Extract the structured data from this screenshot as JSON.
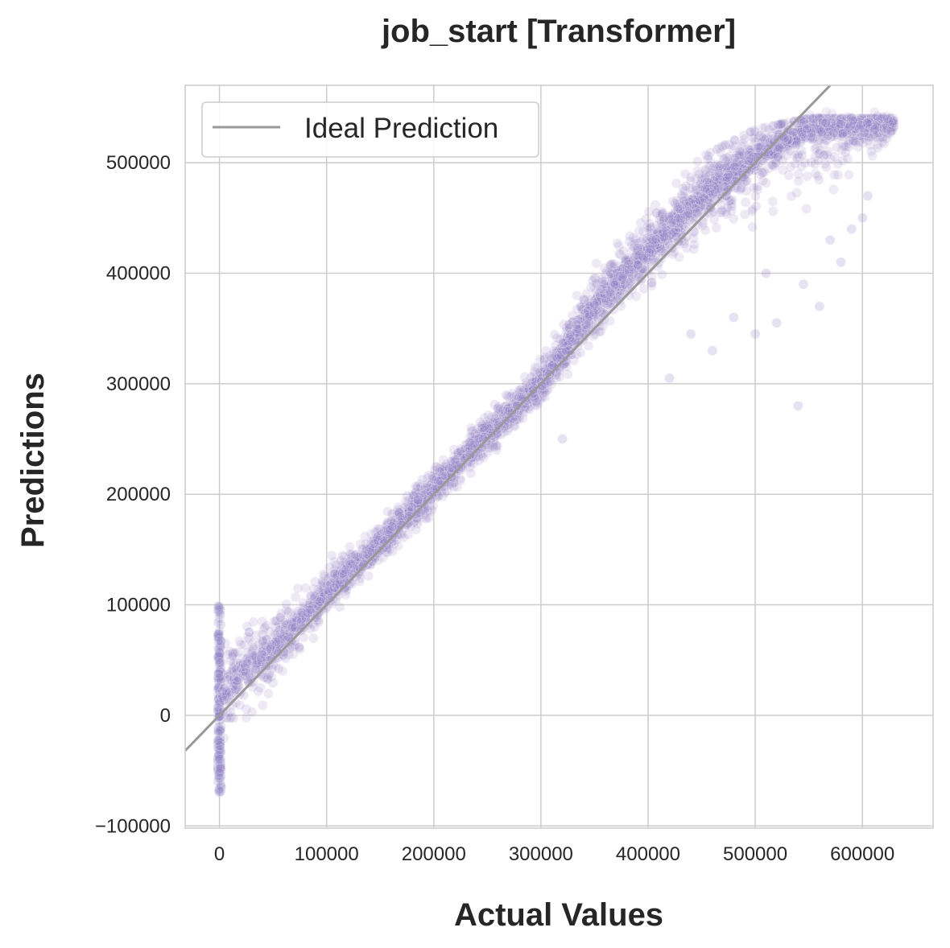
{
  "chart_data": {
    "type": "scatter",
    "title": "job_start [Transformer]",
    "xlabel": "Actual Values",
    "ylabel": "Predictions",
    "xlim": [
      -32000,
      666000
    ],
    "ylim": [
      -102000,
      570000
    ],
    "x_ticks": [
      0,
      100000,
      200000,
      300000,
      400000,
      500000,
      600000
    ],
    "x_tick_labels": [
      "0",
      "100000",
      "200000",
      "300000",
      "400000",
      "500000",
      "600000"
    ],
    "y_ticks": [
      -100000,
      0,
      100000,
      200000,
      300000,
      400000,
      500000
    ],
    "y_tick_labels": [
      "−100000",
      "0",
      "100000",
      "200000",
      "300000",
      "400000",
      "500000"
    ],
    "grid": true,
    "legend": {
      "position": "top-left",
      "entries": [
        "Ideal Prediction"
      ]
    },
    "reference_line": {
      "name": "Ideal Prediction",
      "slope": 1,
      "intercept": 0,
      "color": "#999999"
    },
    "series": [
      {
        "color": "#8e7cc3",
        "band_center": [
          [
            0,
            10000
          ],
          [
            20000,
            40000
          ],
          [
            50000,
            60000
          ],
          [
            100000,
            110000
          ],
          [
            150000,
            155000
          ],
          [
            200000,
            205000
          ],
          [
            250000,
            255000
          ],
          [
            300000,
            300000
          ],
          [
            350000,
            370000
          ],
          [
            400000,
            420000
          ],
          [
            450000,
            470000
          ],
          [
            500000,
            505000
          ],
          [
            550000,
            530000
          ],
          [
            630000,
            535000
          ]
        ],
        "band_low": [
          [
            0,
            -70000
          ],
          [
            20000,
            -30000
          ],
          [
            50000,
            20000
          ],
          [
            100000,
            80000
          ],
          [
            150000,
            130000
          ],
          [
            200000,
            175000
          ],
          [
            250000,
            225000
          ],
          [
            300000,
            275000
          ],
          [
            350000,
            320000
          ],
          [
            400000,
            360000
          ],
          [
            450000,
            400000
          ],
          [
            500000,
            420000
          ],
          [
            550000,
            440000
          ],
          [
            600000,
            470000
          ],
          [
            630000,
            520000
          ]
        ],
        "band_high": [
          [
            0,
            110000
          ],
          [
            20000,
            115000
          ],
          [
            50000,
            135000
          ],
          [
            100000,
            155000
          ],
          [
            150000,
            190000
          ],
          [
            200000,
            235000
          ],
          [
            250000,
            290000
          ],
          [
            300000,
            340000
          ],
          [
            350000,
            410000
          ],
          [
            400000,
            455000
          ],
          [
            450000,
            505000
          ],
          [
            500000,
            530000
          ],
          [
            550000,
            540000
          ],
          [
            630000,
            540000
          ]
        ],
        "outliers": [
          [
            540000,
            280000
          ],
          [
            500000,
            345000
          ],
          [
            560000,
            370000
          ],
          [
            580000,
            410000
          ],
          [
            600000,
            450000
          ],
          [
            420000,
            305000
          ],
          [
            460000,
            330000
          ],
          [
            520000,
            355000
          ],
          [
            545000,
            390000
          ],
          [
            570000,
            430000
          ],
          [
            605000,
            470000
          ],
          [
            440000,
            345000
          ],
          [
            480000,
            360000
          ],
          [
            320000,
            250000
          ],
          [
            510000,
            400000
          ],
          [
            590000,
            440000
          ]
        ]
      }
    ]
  }
}
